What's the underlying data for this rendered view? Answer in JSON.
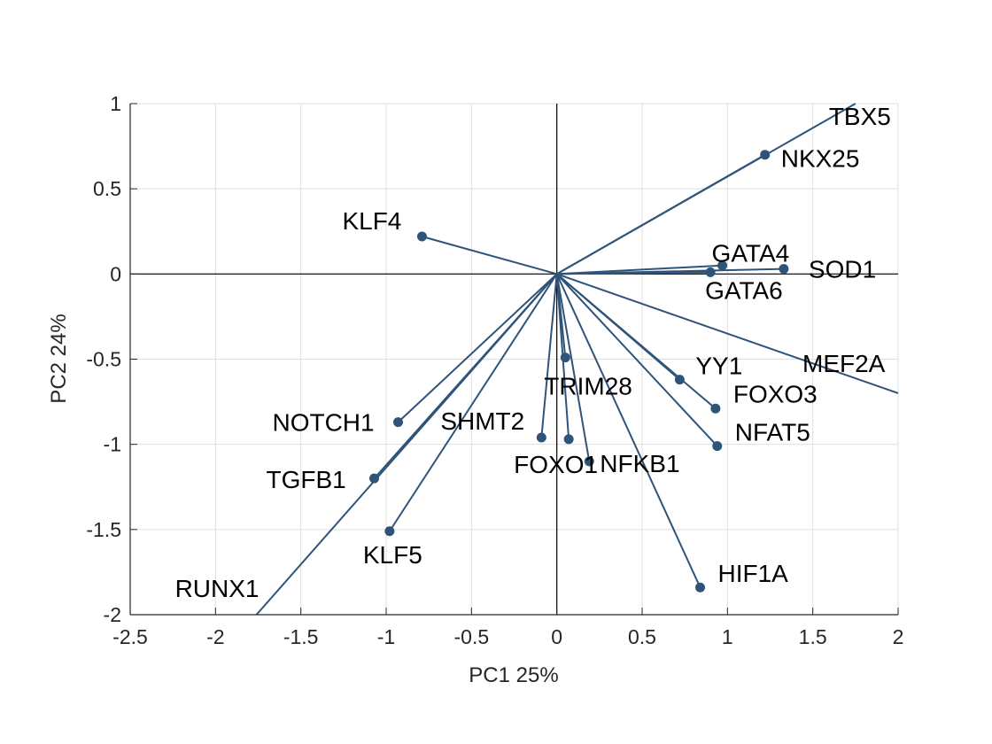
{
  "chart_data": {
    "type": "scatter",
    "title": "",
    "xlabel": "PC1 25%",
    "ylabel": "PC2 24%",
    "xlim": [
      -2.5,
      2
    ],
    "ylim": [
      -2,
      1
    ],
    "xticks": [
      -2.5,
      -2,
      -1.5,
      -1,
      -0.5,
      0,
      0.5,
      1,
      1.5,
      2
    ],
    "yticks": [
      -2,
      -1.5,
      -1,
      -0.5,
      0,
      0.5,
      1
    ],
    "xtick_labels": [
      "-2.5",
      "-2",
      "-1.5",
      "-1",
      "-0.5",
      "0",
      "0.5",
      "1",
      "1.5",
      "2"
    ],
    "ytick_labels": [
      "-2",
      "-1.5",
      "-1",
      "-0.5",
      "0",
      "0.5",
      "1"
    ],
    "grid": true,
    "color": "#2f5479",
    "points": [
      {
        "label": "TBX5",
        "x": 1.75,
        "y": 1.0,
        "marker": false,
        "label_dx": -30,
        "label_dy": 24
      },
      {
        "label": "NKX25",
        "x": 1.22,
        "y": 0.7,
        "marker": true,
        "label_dx": 18,
        "label_dy": 14
      },
      {
        "label": "KLF4",
        "x": -0.79,
        "y": 0.22,
        "marker": true,
        "label_dx": -90,
        "label_dy": -8
      },
      {
        "label": "GATA4",
        "x": 0.97,
        "y": 0.05,
        "marker": true,
        "label_dx": -12,
        "label_dy": -4
      },
      {
        "label": "GATA6",
        "x": 0.9,
        "y": 0.01,
        "marker": true,
        "label_dx": -6,
        "label_dy": 30
      },
      {
        "label": "SOD1",
        "x": 1.33,
        "y": 0.03,
        "marker": true,
        "label_dx": 28,
        "label_dy": 10
      },
      {
        "label": "MEF2A",
        "x": 2.0,
        "y": -0.7,
        "marker": false,
        "label_dx": -108,
        "label_dy": -24
      },
      {
        "label": "YY1",
        "x": 0.72,
        "y": -0.62,
        "marker": true,
        "label_dx": 18,
        "label_dy": -6
      },
      {
        "label": "TRIM28",
        "x": 0.05,
        "y": -0.49,
        "marker": true,
        "label_dx": -24,
        "label_dy": 42
      },
      {
        "label": "FOXO3",
        "x": 0.93,
        "y": -0.79,
        "marker": true,
        "label_dx": 20,
        "label_dy": -7
      },
      {
        "label": "NFAT5",
        "x": 0.94,
        "y": -1.01,
        "marker": true,
        "label_dx": 20,
        "label_dy": -6
      },
      {
        "label": "NOTCH1",
        "x": -0.93,
        "y": -0.87,
        "marker": true,
        "label_dx": -142,
        "label_dy": 10
      },
      {
        "label": "SHMT2",
        "x": -0.09,
        "y": -0.96,
        "marker": true,
        "label_dx": -114,
        "label_dy": -9
      },
      {
        "label": "FOXO1",
        "x": 0.07,
        "y": -0.97,
        "marker": true,
        "label_dx": -62,
        "label_dy": 38
      },
      {
        "label": "NFKB1",
        "x": 0.19,
        "y": -1.1,
        "marker": true,
        "label_dx": 12,
        "label_dy": 12
      },
      {
        "label": "TGFB1",
        "x": -1.07,
        "y": -1.2,
        "marker": true,
        "label_dx": -122,
        "label_dy": 11
      },
      {
        "label": "KLF5",
        "x": -0.98,
        "y": -1.51,
        "marker": true,
        "label_dx": -30,
        "label_dy": 36
      },
      {
        "label": "HIF1A",
        "x": 0.84,
        "y": -1.84,
        "marker": true,
        "label_dx": 20,
        "label_dy": -6
      },
      {
        "label": "RUNX1",
        "x": -1.76,
        "y": -2.0,
        "marker": false,
        "label_dx": -92,
        "label_dy": -20
      }
    ]
  }
}
